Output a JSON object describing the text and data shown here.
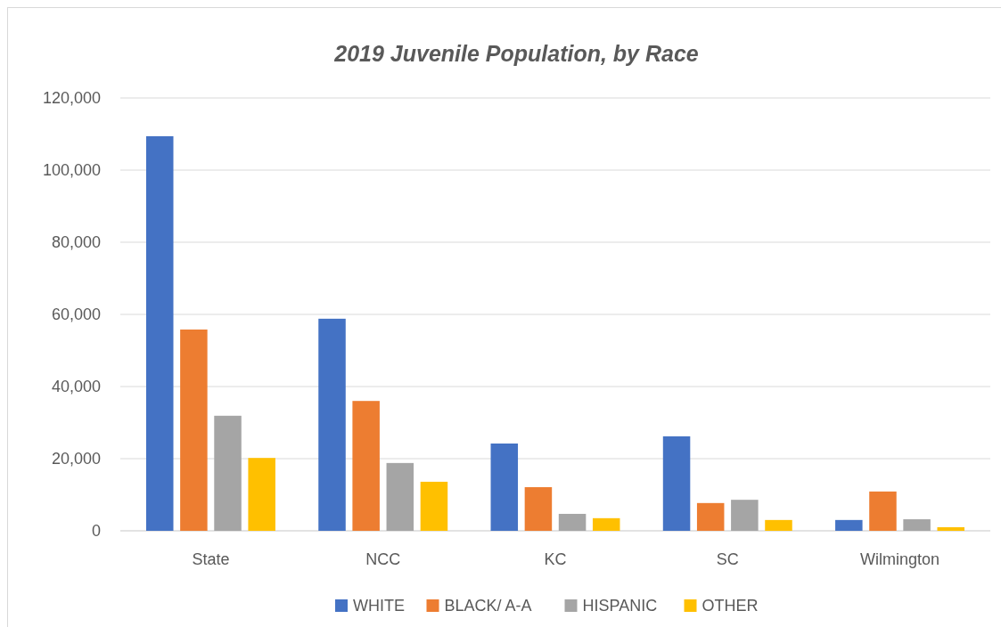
{
  "chart_data": {
    "type": "bar",
    "title": "2019 Juvenile Population, by Race",
    "categories": [
      "State",
      "NCC",
      "KC",
      "SC",
      "Wilmington"
    ],
    "series": [
      {
        "name": "WHITE",
        "color": "#4472c4",
        "values": [
          109400,
          58800,
          24200,
          26200,
          3000
        ]
      },
      {
        "name": "BLACK/ A-A",
        "color": "#ed7d31",
        "values": [
          55800,
          36000,
          12100,
          7700,
          10900
        ]
      },
      {
        "name": "HISPANIC",
        "color": "#a5a5a5",
        "values": [
          31900,
          18800,
          4700,
          8600,
          3200
        ]
      },
      {
        "name": "OTHER",
        "color": "#ffc000",
        "values": [
          20200,
          13600,
          3500,
          3000,
          1000
        ]
      }
    ],
    "ylim": [
      0,
      120000
    ],
    "yticks": [
      {
        "value": 0,
        "label": "0"
      },
      {
        "value": 20000,
        "label": "20,000"
      },
      {
        "value": 40000,
        "label": "40,000"
      },
      {
        "value": 60000,
        "label": "60,000"
      },
      {
        "value": 80000,
        "label": "80,000"
      },
      {
        "value": 100000,
        "label": "100,000"
      },
      {
        "value": 120000,
        "label": "120,000"
      }
    ],
    "grid": "y",
    "legend": "bottom"
  }
}
